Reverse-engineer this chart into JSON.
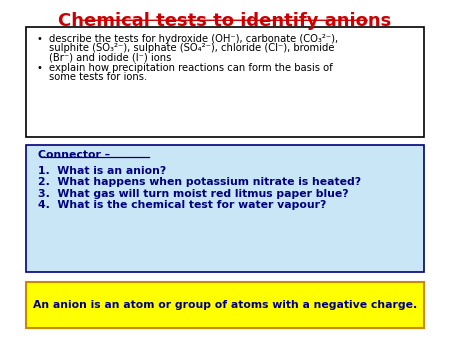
{
  "title": "Chemical tests to identify anions",
  "title_color": "#cc0000",
  "title_fontsize": 13,
  "bg_color": "#ffffff",
  "bullet_box_bg": "#ffffff",
  "bullet_box_border": "#000000",
  "bullet1_line1": "describe the tests for hydroxide (OH⁻), carbonate (CO₃²⁻),",
  "bullet1_line2": "sulphite (SO₃²⁻), sulphate (SO₄²⁻), chloride (Cl⁻), bromide",
  "bullet1_line3": "(Br⁻) and iodide (I⁻) ions",
  "bullet2_line1": "explain how precipitation reactions can form the basis of",
  "bullet2_line2": "some tests for ions.",
  "connector_box_bg": "#c8e6f5",
  "connector_box_border": "#000080",
  "connector_text": "Connector –",
  "connector_color": "#000080",
  "questions": [
    "1.  What is an anion?",
    "2.  What happens when potassium nitrate is heated?",
    "3.  What gas will turn moist red litmus paper blue?",
    "4.  What is the chemical test for water vapour?"
  ],
  "question_color": "#000080",
  "answer_box_bg": "#ffff00",
  "answer_box_border": "#cc8800",
  "answer_text": "An anion is an atom or group of atoms with a negative charge.",
  "answer_color": "#000080"
}
